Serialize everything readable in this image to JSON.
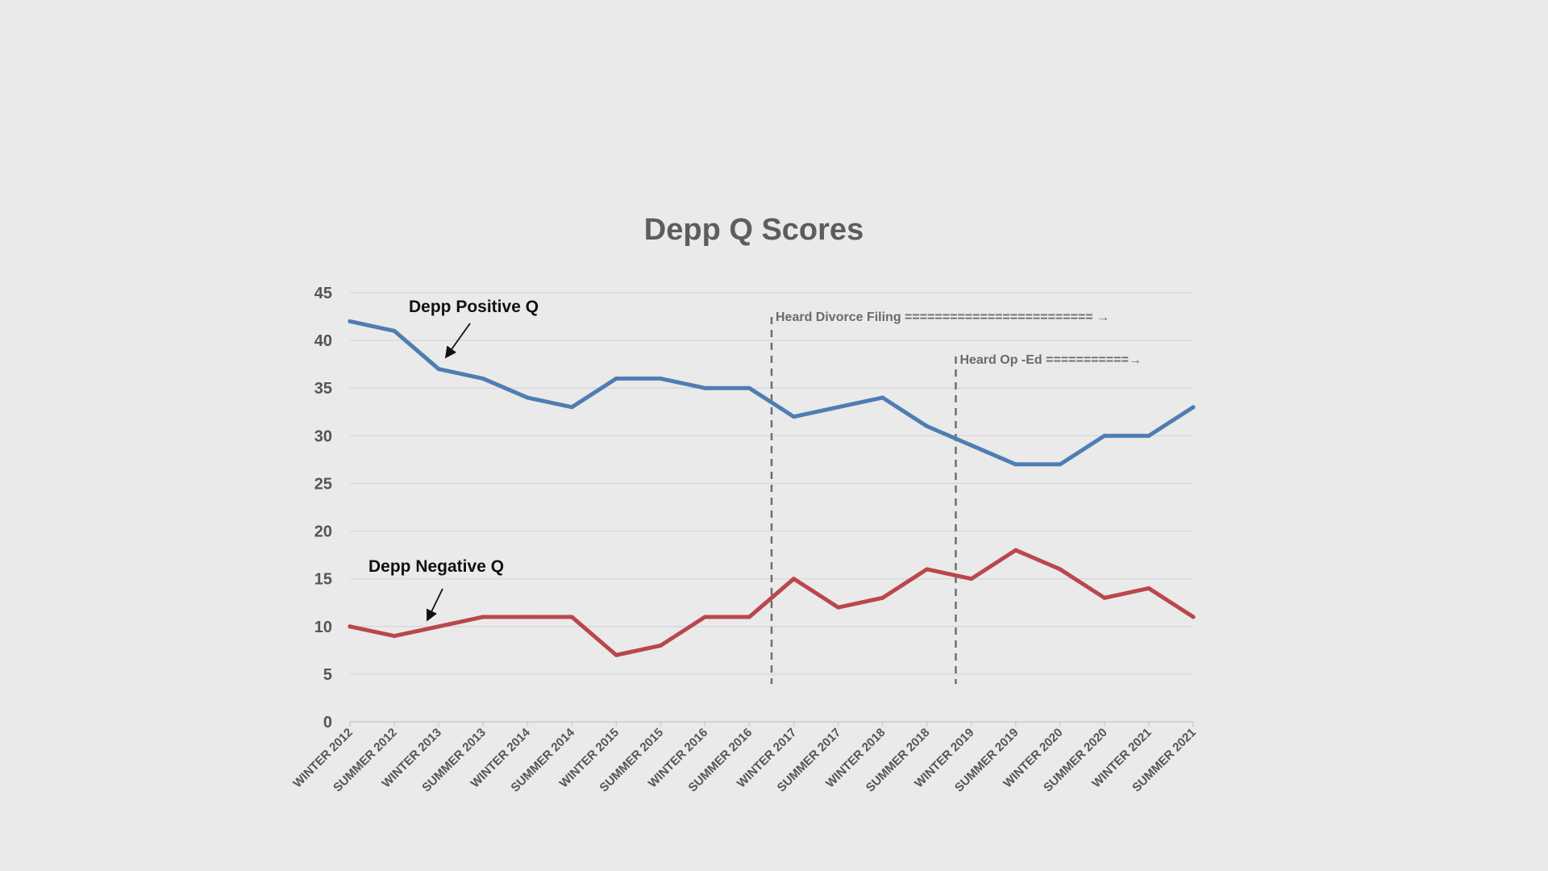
{
  "chart_data": {
    "type": "line",
    "title": "Depp Q Scores",
    "xlabel": "",
    "ylabel": "",
    "ylim": [
      0,
      45
    ],
    "yticks": [
      0,
      5,
      10,
      15,
      20,
      25,
      30,
      35,
      40,
      45
    ],
    "grid": true,
    "categories": [
      "WINTER 2012",
      "SUMMER 2012",
      "WINTER 2013",
      "SUMMER 2013",
      "WINTER 2014",
      "SUMMER 2014",
      "WINTER 2015",
      "SUMMER 2015",
      "WINTER 2016",
      "SUMMER 2016",
      "WINTER 2017",
      "SUMMER 2017",
      "WINTER 2018",
      "SUMMER 2018",
      "WINTER 2019",
      "SUMMER 2019",
      "WINTER 2020",
      "SUMMER 2020",
      "WINTER 2021",
      "SUMMER 2021"
    ],
    "series": [
      {
        "name": "Depp Positive Q",
        "color": "#4f7db3",
        "values": [
          42,
          41,
          37,
          36,
          34,
          33,
          36,
          36,
          35,
          35,
          32,
          33,
          34,
          31,
          29,
          27,
          27,
          30,
          30,
          33
        ]
      },
      {
        "name": "Depp Negative Q",
        "color": "#b9474c",
        "values": [
          10,
          9,
          10,
          11,
          11,
          11,
          7,
          8,
          11,
          11,
          15,
          12,
          13,
          16,
          15,
          18,
          16,
          13,
          14,
          11
        ]
      }
    ],
    "annotations": [
      {
        "label": "Heard Divorce Filing ========================= →",
        "between": [
          "SUMMER 2016",
          "WINTER 2017"
        ],
        "fraction": 0.5
      },
      {
        "label": "Heard Op -Ed ===========→",
        "between": [
          "SUMMER 2018",
          "WINTER 2019"
        ],
        "fraction": 0.65
      }
    ]
  }
}
